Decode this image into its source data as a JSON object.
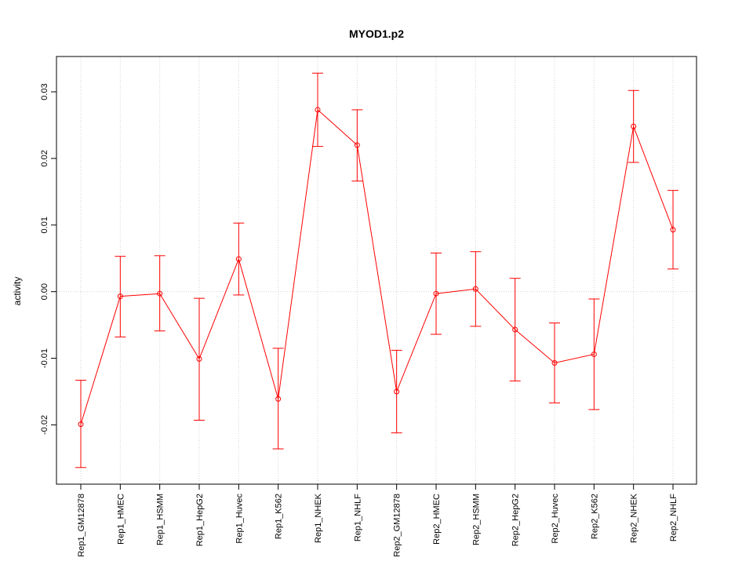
{
  "chart_data": {
    "type": "line",
    "title": "MYOD1.p2",
    "xlabel": "",
    "ylabel": "activity",
    "categories": [
      "Rep1_GM12878",
      "Rep1_HMEC",
      "Rep1_HSMM",
      "Rep1_HepG2",
      "Rep1_Huvec",
      "Rep1_K562",
      "Rep1_NHEK",
      "Rep1_NHLF",
      "Rep2_GM12878",
      "Rep2_HMEC",
      "Rep2_HSMM",
      "Rep2_HepG2",
      "Rep2_Huvec",
      "Rep2_K562",
      "Rep2_NHEK",
      "Rep2_NHLF"
    ],
    "series": [
      {
        "values": [
          -0.0199,
          -0.0007,
          -0.0003,
          -0.0101,
          0.0049,
          -0.0161,
          0.0273,
          0.022,
          -0.015,
          -0.0003,
          0.0004,
          -0.0057,
          -0.0107,
          -0.0094,
          0.0248,
          0.0093
        ],
        "lower": [
          -0.0264,
          -0.0068,
          -0.0059,
          -0.0193,
          -0.0005,
          -0.0236,
          0.0218,
          0.0166,
          -0.0212,
          -0.0064,
          -0.0052,
          -0.0134,
          -0.0167,
          -0.0177,
          0.0194,
          0.0034
        ],
        "upper": [
          -0.0133,
          0.0053,
          0.0054,
          -0.001,
          0.0103,
          -0.0085,
          0.0328,
          0.0273,
          -0.0088,
          0.0058,
          0.006,
          0.002,
          -0.0047,
          -0.0011,
          0.0302,
          0.0152
        ]
      }
    ],
    "yticks": [
      -0.02,
      -0.01,
      0.0,
      0.01,
      0.02,
      0.03
    ],
    "ytick_labels": [
      "-0.02",
      "-0.01",
      "0.00",
      "0.01",
      "0.02",
      "0.03"
    ],
    "ylim": [
      -0.0289,
      0.0353
    ],
    "grid": true,
    "colors": {
      "series": "#ff0000",
      "grid": "#d3d3d3",
      "axis": "#000000"
    }
  }
}
